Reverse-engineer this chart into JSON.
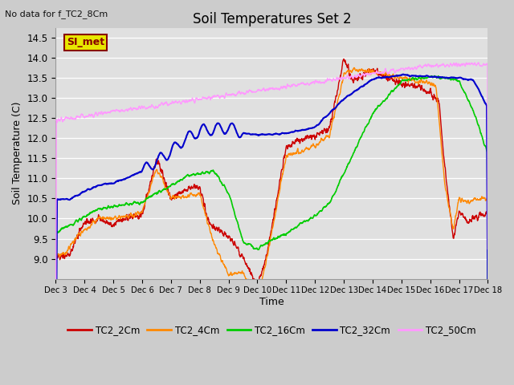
{
  "title": "Soil Temperatures Set 2",
  "note": "No data for f_TC2_8Cm",
  "ylabel": "Soil Temperature (C)",
  "xlabel": "Time",
  "ylim": [
    8.5,
    14.75
  ],
  "fig_bg": "#cccccc",
  "plot_bg": "#e0e0e0",
  "legend_box_facecolor": "#e8e800",
  "legend_box_edgecolor": "#880000",
  "legend_label": "SI_met",
  "series": {
    "TC2_2Cm": {
      "color": "#cc0000",
      "lw": 1.0
    },
    "TC2_4Cm": {
      "color": "#ff8800",
      "lw": 1.0
    },
    "TC2_16Cm": {
      "color": "#00cc00",
      "lw": 1.2
    },
    "TC2_32Cm": {
      "color": "#0000cc",
      "lw": 1.5
    },
    "TC2_50Cm": {
      "color": "#ff99ff",
      "lw": 1.0
    }
  },
  "xtick_labels": [
    "Dec 3",
    "Dec 4",
    "Dec 5",
    "Dec 6",
    "Dec 7",
    "Dec 8",
    "Dec 9",
    "Dec 10",
    "Dec 11",
    "Dec 12",
    "Dec 13",
    "Dec 14",
    "Dec 15",
    "Dec 16",
    "Dec 17",
    "Dec 18"
  ],
  "ytick_vals": [
    9.0,
    9.5,
    10.0,
    10.5,
    11.0,
    11.5,
    12.0,
    12.5,
    13.0,
    13.5,
    14.0,
    14.5
  ],
  "ytick_labels": [
    "9.0",
    "9.5",
    "10.0",
    "10.5",
    "11.0",
    "11.5",
    "12.0",
    "12.5",
    "13.0",
    "13.5",
    "14.0",
    "14.5"
  ]
}
